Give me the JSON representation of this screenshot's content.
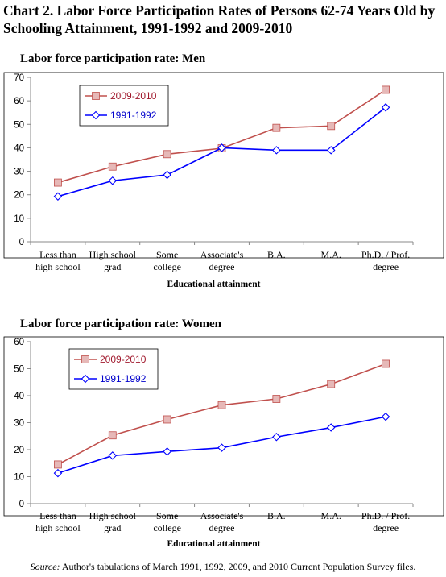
{
  "title": "Chart 2. Labor Force Participation Rates of Persons 62-74 Years Old by Schooling Attainment, 1991-1992 and 2009-2010",
  "source": {
    "label": "Source:",
    "text": " Author's tabulations of March 1991, 1992, 2009, and 2010 Current Population Survey files."
  },
  "colors": {
    "series_2009": "#c0504d",
    "series_2009_marker": "#e6b8b7",
    "series_1991": "#0000ff",
    "series_1991_marker": "#ffffff"
  },
  "chart_data": [
    {
      "type": "line",
      "title": "Labor force participation rate:  Men",
      "xlabel": "Educational attainment",
      "ylabel": "",
      "ylim": [
        0,
        70
      ],
      "yticks": [
        0,
        10,
        20,
        30,
        40,
        50,
        60,
        70
      ],
      "categories": [
        "Less than\nhigh school",
        "High school\ngrad",
        "Some\ncollege",
        "Associate's\ndegree",
        "B.A.",
        "M.A.",
        "Ph.D. / Prof.\ndegree"
      ],
      "grid": false,
      "legend_position": "top-left",
      "series": [
        {
          "name": "2009-2010",
          "values": [
            25.2,
            32.0,
            37.3,
            39.8,
            48.5,
            49.3,
            64.7
          ]
        },
        {
          "name": "1991-1992",
          "values": [
            19.3,
            26.0,
            28.5,
            40.0,
            39.0,
            39.0,
            57.2
          ]
        }
      ]
    },
    {
      "type": "line",
      "title": "Labor force participation rate:  Women",
      "xlabel": "Educational attainment",
      "ylabel": "",
      "ylim": [
        0,
        60
      ],
      "yticks": [
        0,
        10,
        20,
        30,
        40,
        50,
        60
      ],
      "categories": [
        "Less than\nhigh school",
        "High school\ngrad",
        "Some\ncollege",
        "Associate's\ndegree",
        "B.A.",
        "M.A.",
        "Ph.D. / Prof.\ndegree"
      ],
      "grid": false,
      "legend_position": "top-left",
      "series": [
        {
          "name": "2009-2010",
          "values": [
            14.5,
            25.3,
            31.2,
            36.5,
            38.8,
            44.3,
            51.8
          ]
        },
        {
          "name": "1991-1992",
          "values": [
            11.3,
            17.8,
            19.3,
            20.7,
            24.7,
            28.2,
            32.2
          ]
        }
      ]
    }
  ]
}
